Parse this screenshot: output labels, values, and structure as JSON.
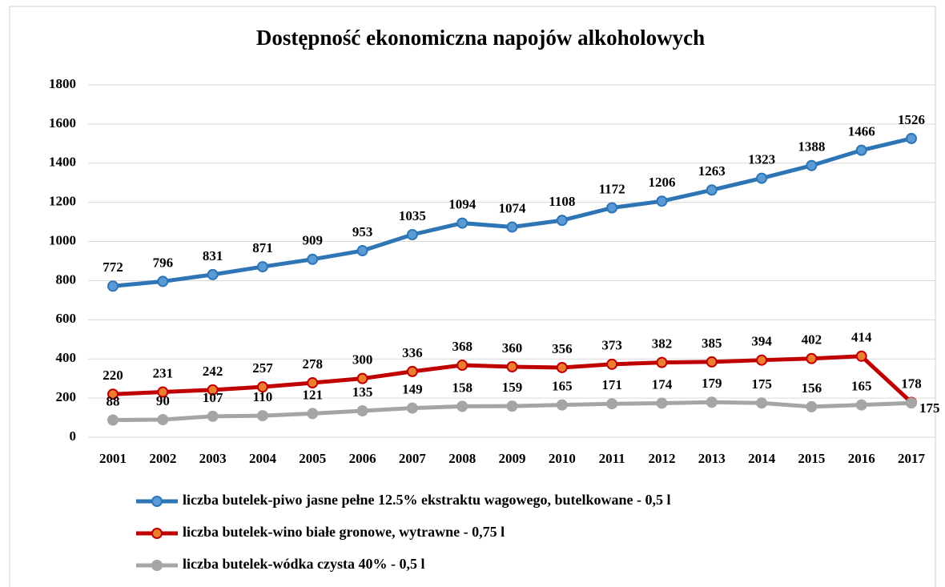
{
  "chart_data": {
    "type": "line",
    "title": "Dostępność ekonomiczna napojów alkoholowych",
    "categories": [
      "2001",
      "2002",
      "2003",
      "2004",
      "2005",
      "2006",
      "2007",
      "2008",
      "2009",
      "2010",
      "2011",
      "2012",
      "2013",
      "2014",
      "2015",
      "2016",
      "2017"
    ],
    "series": [
      {
        "name": "liczba butelek-piwo jasne pełne 12.5% ekstraktu wagowego, butelkowane - 0,5 l",
        "color": "#2e75b6",
        "marker_color": "#5b9bd5",
        "values": [
          772,
          796,
          831,
          871,
          909,
          953,
          1035,
          1094,
          1074,
          1108,
          1172,
          1206,
          1263,
          1323,
          1388,
          1466,
          1526
        ]
      },
      {
        "name": "liczba butelek-wino białe gronowe, wytrawne - 0,75 l",
        "color": "#c00000",
        "marker_color": "#ed7d31",
        "values": [
          220,
          231,
          242,
          257,
          278,
          300,
          336,
          368,
          360,
          356,
          373,
          382,
          385,
          394,
          402,
          414,
          178
        ]
      },
      {
        "name": "liczba butelek-wódka czysta 40% - 0,5 l",
        "color": "#a5a5a5",
        "marker_color": "#a5a5a5",
        "values": [
          88,
          90,
          107,
          110,
          121,
          135,
          149,
          158,
          159,
          165,
          171,
          174,
          179,
          175,
          156,
          165,
          175
        ]
      }
    ],
    "ylim": [
      0,
      1800
    ],
    "yticks": [
      0,
      200,
      400,
      600,
      800,
      1000,
      1200,
      1400,
      1600,
      1800
    ],
    "grid": true,
    "legend": "bottom"
  }
}
